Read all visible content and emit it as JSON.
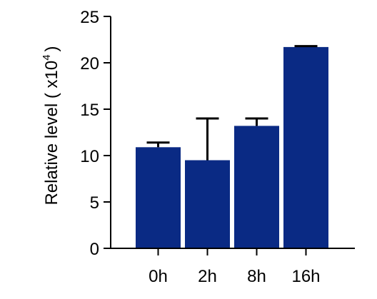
{
  "chart_data": {
    "type": "bar",
    "title": "",
    "xlabel": "",
    "ylabel_main": "Relative level ( x10",
    "ylabel_sup": "4",
    "ylabel_end": ")",
    "categories": [
      "0h",
      "2h",
      "8h",
      "16h"
    ],
    "values": [
      10.9,
      9.5,
      13.2,
      21.7
    ],
    "error_upper": [
      11.4,
      14.0,
      14.0,
      21.8
    ],
    "ylim": [
      0,
      25
    ],
    "yticks": [
      0,
      5,
      10,
      15,
      20,
      25
    ],
    "grid": false,
    "legend": "none",
    "colors": {
      "bar": "#0a2a84",
      "error_bar": "#000000",
      "axis": "#000000"
    }
  }
}
